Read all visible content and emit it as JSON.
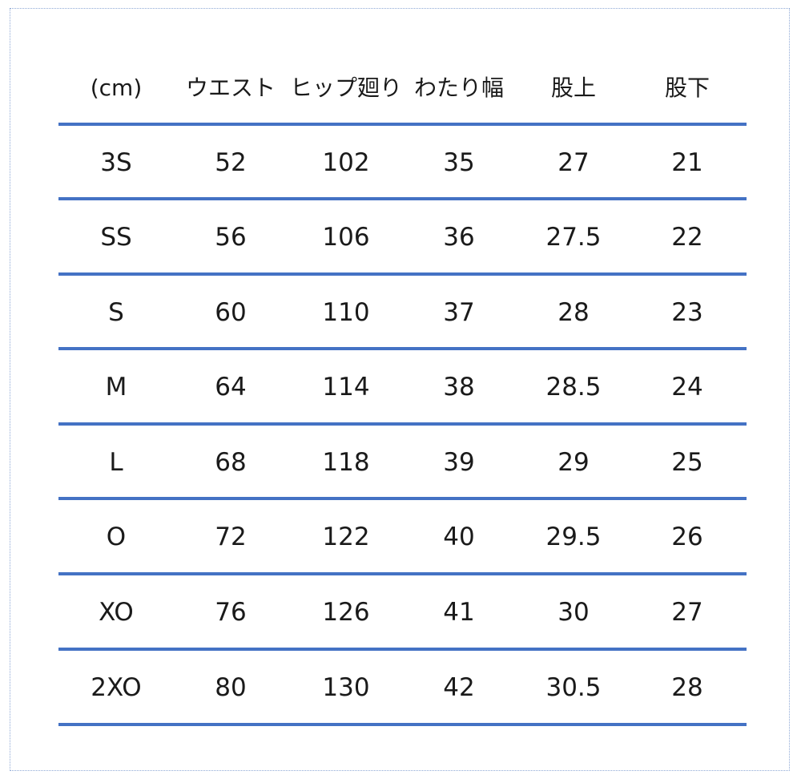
{
  "table": {
    "headers": [
      "(cm)",
      "ウエスト",
      "ヒップ廻り",
      "わたり幅",
      "股上",
      "股下"
    ],
    "rows": [
      [
        "3S",
        "52",
        "102",
        "35",
        "27",
        "21"
      ],
      [
        "SS",
        "56",
        "106",
        "36",
        "27.5",
        "22"
      ],
      [
        "S",
        "60",
        "110",
        "37",
        "28",
        "23"
      ],
      [
        "M",
        "64",
        "114",
        "38",
        "28.5",
        "24"
      ],
      [
        "L",
        "68",
        "118",
        "39",
        "29",
        "25"
      ],
      [
        "O",
        "72",
        "122",
        "40",
        "29.5",
        "26"
      ],
      [
        "XO",
        "76",
        "126",
        "41",
        "30",
        "27"
      ],
      [
        "2XO",
        "80",
        "130",
        "42",
        "30.5",
        "28"
      ]
    ],
    "line_color": "#4472c4"
  }
}
